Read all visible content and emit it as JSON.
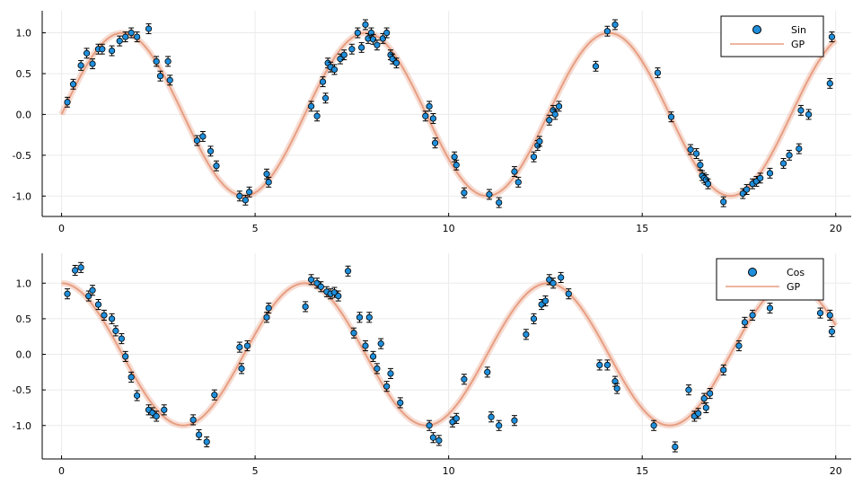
{
  "colors": {
    "points": "#1f8fdc",
    "gp": "#e79e82",
    "grid": "#ebebeb",
    "errorbar": "#000000"
  },
  "chart_data": [
    {
      "type": "scatter",
      "name": "top-panel",
      "xlim": [
        -0.5,
        20.4
      ],
      "ylim": [
        -1.25,
        1.27
      ],
      "x_ticks": [
        0,
        5,
        10,
        15,
        20
      ],
      "y_ticks": [
        -1.0,
        -0.5,
        0.0,
        0.5,
        1.0
      ],
      "y_tick_labels": [
        "-1.0",
        "-0.5",
        "0.0",
        "0.5",
        "1.0"
      ],
      "grid": true,
      "legend": {
        "position": "top-right",
        "entries": [
          "Sin",
          "GP"
        ]
      },
      "error_halfwidth": 0.06,
      "series": [
        {
          "name": "Sin",
          "kind": "points-with-error",
          "x": [
            0.15,
            0.3,
            0.5,
            0.65,
            0.8,
            0.95,
            1.05,
            1.3,
            1.5,
            1.65,
            1.8,
            1.95,
            2.25,
            2.45,
            2.55,
            2.75,
            2.8,
            3.5,
            3.65,
            3.85,
            4.0,
            4.6,
            4.75,
            4.85,
            5.3,
            5.35,
            6.45,
            6.6,
            6.75,
            6.82,
            6.88,
            6.95,
            7.05,
            7.2,
            7.3,
            7.5,
            7.65,
            7.75,
            7.85,
            7.92,
            8.0,
            8.05,
            8.15,
            8.3,
            8.4,
            8.5,
            8.55,
            8.65,
            9.4,
            9.5,
            9.6,
            9.65,
            10.15,
            10.2,
            10.4,
            11.05,
            11.3,
            11.7,
            11.8,
            12.2,
            12.3,
            12.35,
            12.6,
            12.7,
            12.75,
            12.85,
            13.8,
            14.1,
            14.3,
            15.4,
            15.75,
            16.25,
            16.4,
            16.5,
            16.55,
            16.6,
            16.65,
            16.7,
            17.1,
            17.6,
            17.7,
            17.85,
            17.95,
            18.05,
            18.3,
            18.65,
            18.8,
            19.05,
            19.1,
            19.3,
            19.85,
            19.9
          ],
          "y": [
            0.15,
            0.37,
            0.6,
            0.75,
            0.62,
            0.8,
            0.8,
            0.78,
            0.9,
            0.95,
            1.0,
            0.95,
            1.05,
            0.65,
            0.47,
            0.65,
            0.42,
            -0.32,
            -0.27,
            -0.45,
            -0.63,
            -1.0,
            -1.05,
            -0.95,
            -0.73,
            -0.83,
            0.1,
            -0.02,
            0.4,
            0.2,
            0.63,
            0.58,
            0.55,
            0.68,
            0.73,
            0.8,
            1.0,
            0.82,
            1.1,
            0.93,
            1.0,
            0.92,
            0.85,
            0.93,
            1.0,
            0.73,
            0.68,
            0.63,
            -0.02,
            0.1,
            -0.05,
            -0.35,
            -0.52,
            -0.62,
            -0.96,
            -0.98,
            -1.08,
            -0.7,
            -0.83,
            -0.52,
            -0.38,
            -0.33,
            -0.07,
            0.05,
            0.0,
            0.1,
            0.59,
            1.02,
            1.1,
            0.51,
            -0.03,
            -0.43,
            -0.48,
            -0.62,
            -0.75,
            -0.78,
            -0.8,
            -0.85,
            -1.07,
            -0.97,
            -0.92,
            -0.85,
            -0.82,
            -0.78,
            -0.72,
            -0.6,
            -0.5,
            -0.42,
            0.05,
            0.0,
            0.38,
            0.95
          ],
          "color": "#1f8fdc"
        },
        {
          "name": "GP",
          "kind": "line",
          "function": "sin",
          "x_range": [
            0,
            20
          ],
          "samples": 200,
          "color": "#e79e82"
        }
      ]
    },
    {
      "type": "scatter",
      "name": "bottom-panel",
      "xlim": [
        -0.5,
        20.4
      ],
      "ylim": [
        -1.47,
        1.42
      ],
      "x_ticks": [
        0,
        5,
        10,
        15,
        20
      ],
      "y_ticks": [
        -1.0,
        -0.5,
        0.0,
        0.5,
        1.0
      ],
      "y_tick_labels": [
        "-1.0",
        "-0.5",
        "0.0",
        "0.5",
        "1.0"
      ],
      "grid": true,
      "legend": {
        "position": "top-right",
        "entries": [
          "Cos",
          "GP"
        ]
      },
      "error_halfwidth": 0.07,
      "series": [
        {
          "name": "Cos",
          "kind": "points-with-error",
          "x": [
            0.15,
            0.35,
            0.5,
            0.7,
            0.8,
            0.95,
            1.1,
            1.3,
            1.4,
            1.55,
            1.65,
            1.8,
            1.95,
            2.25,
            2.35,
            2.45,
            2.65,
            3.4,
            3.55,
            3.75,
            3.95,
            4.6,
            4.65,
            4.8,
            5.3,
            5.35,
            6.3,
            6.45,
            6.6,
            6.7,
            6.85,
            6.95,
            7.05,
            7.15,
            7.4,
            7.55,
            7.7,
            7.85,
            7.95,
            8.05,
            8.15,
            8.25,
            8.4,
            8.5,
            8.75,
            9.5,
            9.6,
            9.75,
            10.1,
            10.2,
            10.4,
            11.0,
            11.1,
            11.3,
            11.7,
            12.0,
            12.2,
            12.4,
            12.5,
            12.6,
            12.7,
            12.9,
            13.1,
            13.9,
            14.1,
            14.3,
            14.35,
            15.3,
            15.85,
            16.2,
            16.35,
            16.45,
            16.6,
            16.65,
            16.75,
            17.1,
            17.5,
            17.65,
            17.85,
            18.3,
            19.6,
            19.85,
            19.9
          ],
          "y": [
            0.85,
            1.18,
            1.22,
            0.82,
            0.9,
            0.7,
            0.55,
            0.5,
            0.33,
            0.22,
            -0.03,
            -0.32,
            -0.58,
            -0.78,
            -0.82,
            -0.87,
            -0.78,
            -0.92,
            -1.13,
            -1.23,
            -0.57,
            0.1,
            -0.2,
            0.12,
            0.52,
            0.65,
            0.67,
            1.05,
            1.0,
            0.95,
            0.88,
            0.85,
            0.87,
            0.82,
            1.17,
            0.3,
            0.52,
            0.12,
            0.52,
            -0.03,
            -0.2,
            0.15,
            -0.45,
            -0.27,
            -0.68,
            -1.0,
            -1.17,
            -1.21,
            -0.95,
            -0.9,
            -0.35,
            -0.25,
            -0.88,
            -1.0,
            -0.93,
            0.28,
            0.5,
            0.7,
            0.75,
            1.05,
            1.0,
            1.08,
            0.85,
            -0.15,
            -0.15,
            -0.38,
            -0.48,
            -1.0,
            -1.3,
            -0.5,
            -0.87,
            -0.83,
            -0.62,
            -0.75,
            -0.55,
            -0.22,
            0.12,
            0.45,
            0.55,
            0.65,
            0.58,
            0.55,
            0.32
          ],
          "color": "#1f8fdc"
        },
        {
          "name": "GP",
          "kind": "line",
          "function": "cos",
          "x_range": [
            0,
            20
          ],
          "samples": 200,
          "color": "#e79e82"
        }
      ]
    }
  ]
}
